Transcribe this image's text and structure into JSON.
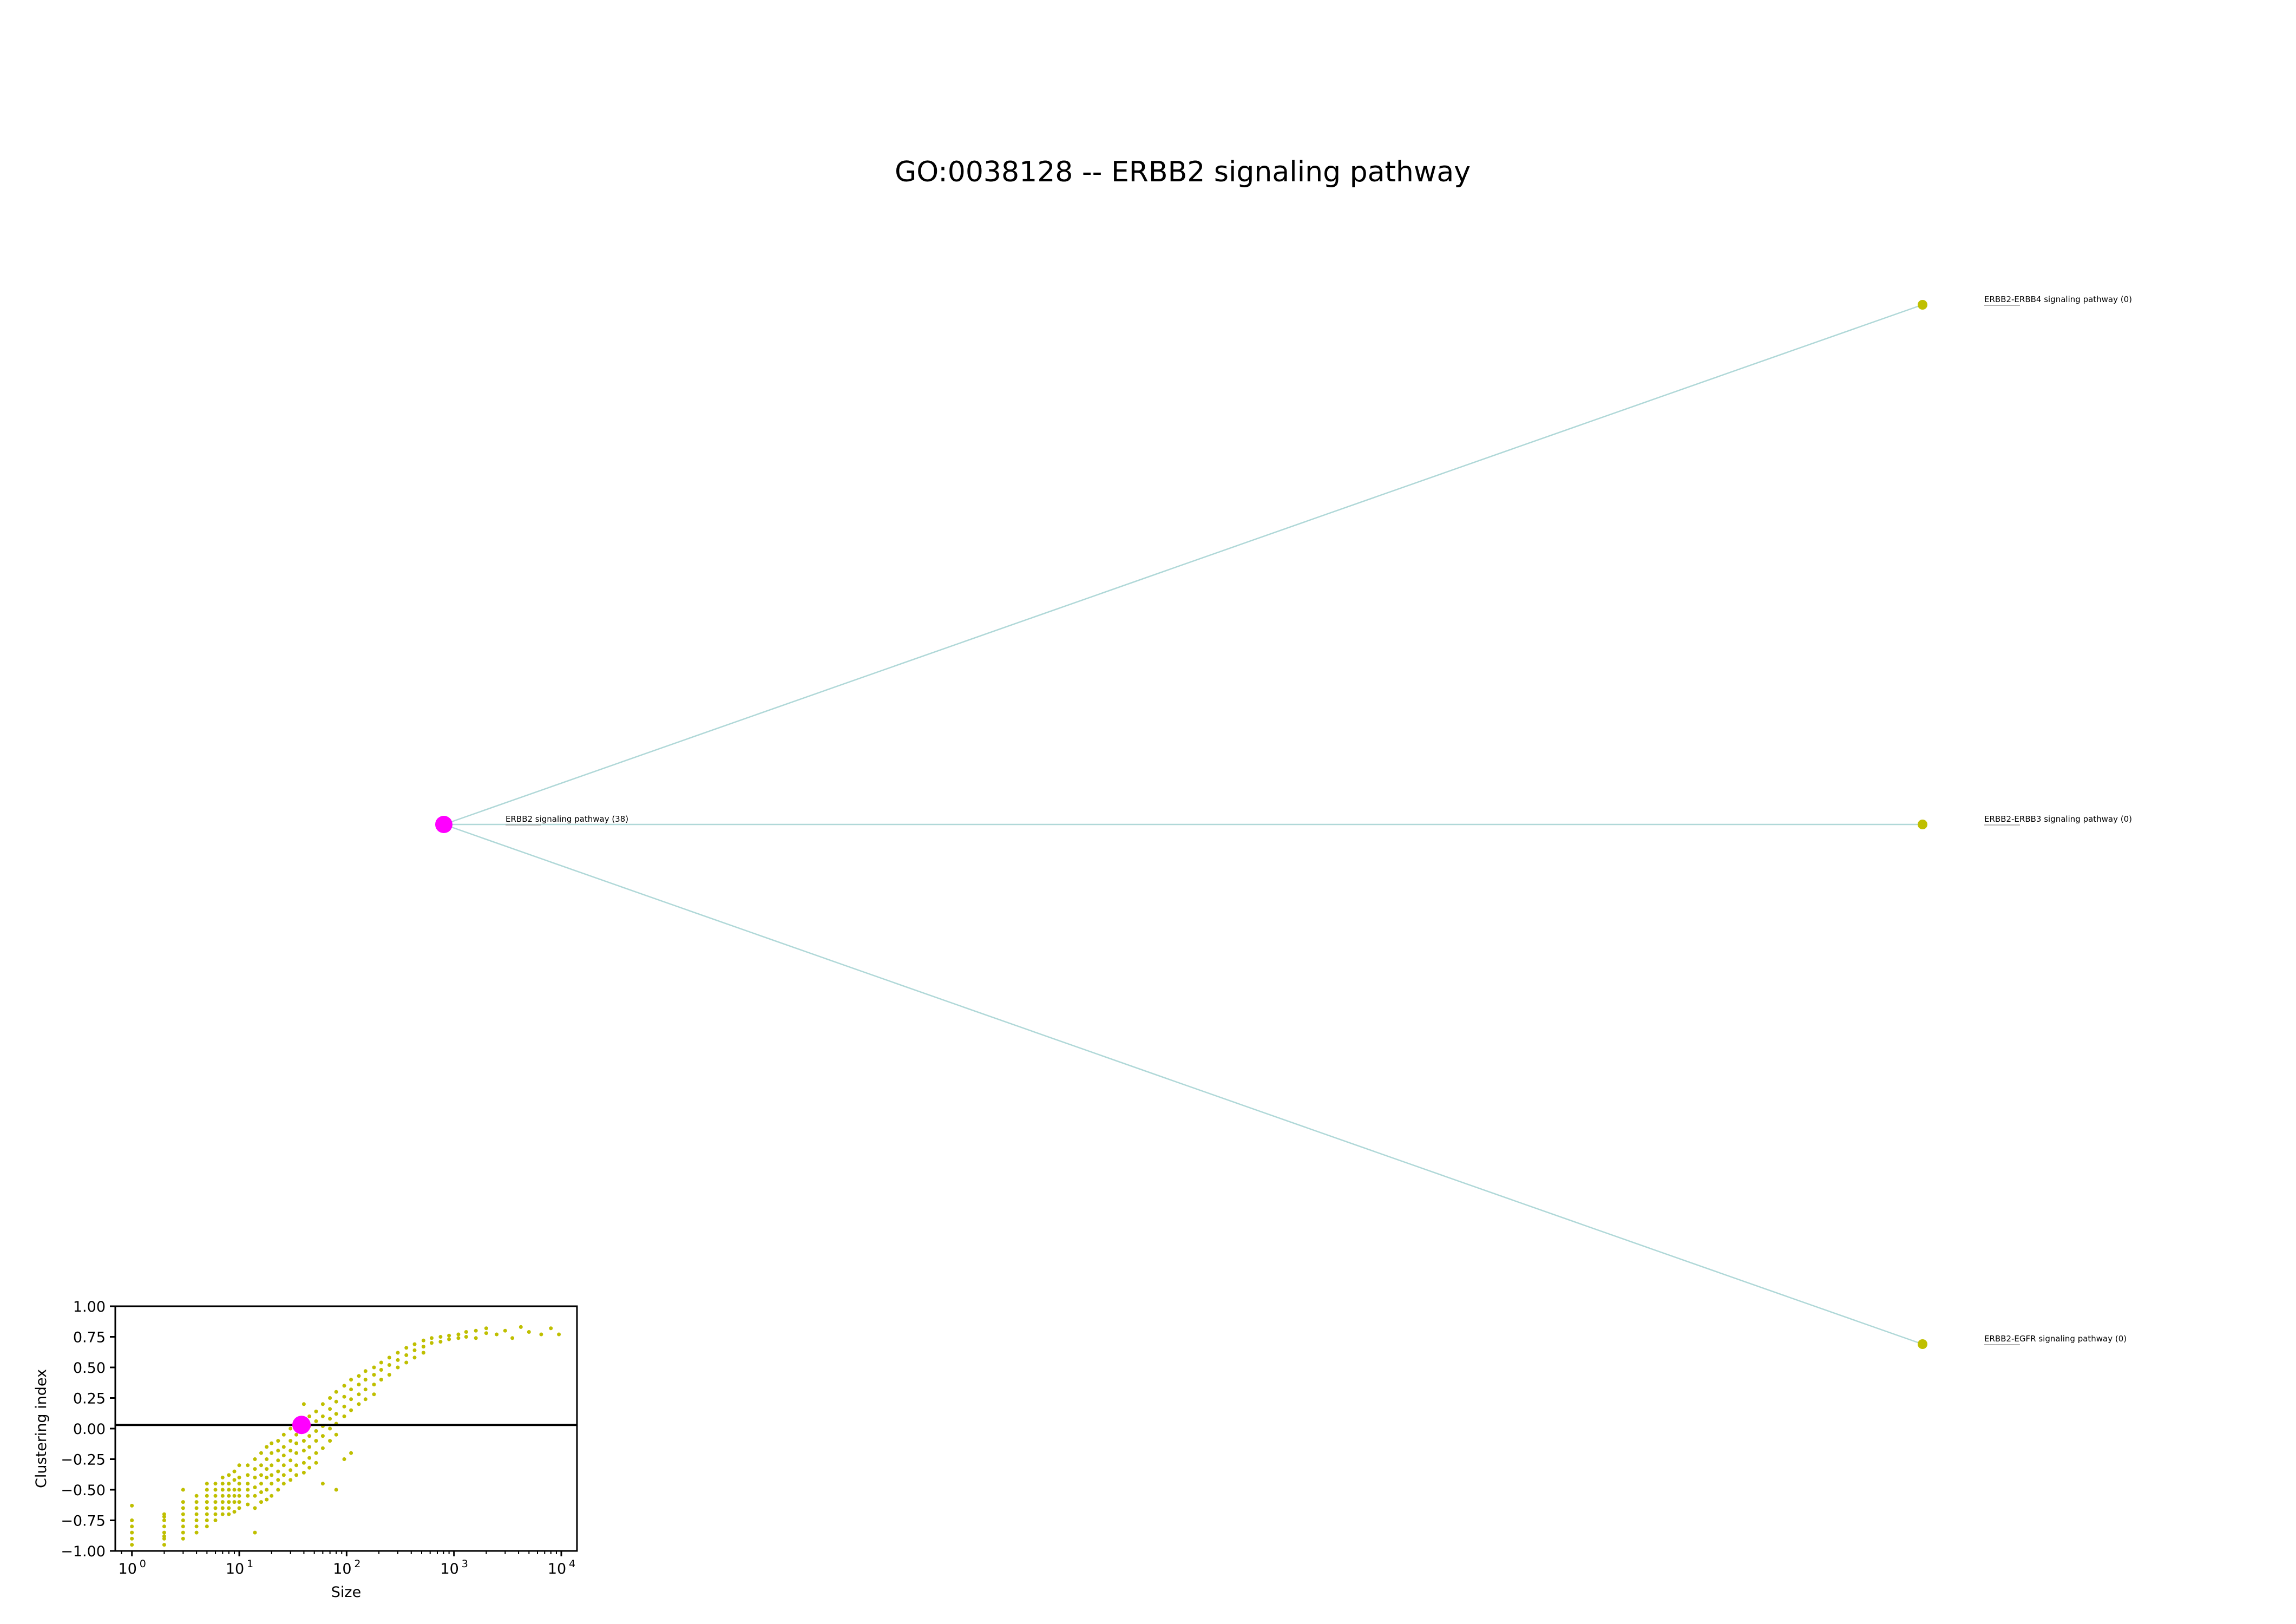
{
  "title": "GO:0038128 -- ERBB2 signaling pathway",
  "colors": {
    "root_node": "#ff00ff",
    "child_node": "#bfbf00",
    "edge": "#b0d8d8",
    "scatter": "#bfbf00",
    "highlight": "#ff00ff"
  },
  "graph": {
    "root": {
      "label": "ERBB2 signaling pathway (38)"
    },
    "children": [
      {
        "label": "ERBB2-ERBB4 signaling pathway (0)"
      },
      {
        "label": "ERBB2-ERBB3 signaling pathway (0)"
      },
      {
        "label": "ERBB2-EGFR signaling pathway (0)"
      }
    ]
  },
  "chart_data": {
    "type": "scatter",
    "xlabel": "Size",
    "ylabel": "Clustering index",
    "xscale": "log",
    "xlim": [
      0.7,
      14000
    ],
    "ylim": [
      -1.0,
      1.0
    ],
    "x_ticks": [
      "10",
      "10",
      "10",
      "10",
      "10"
    ],
    "x_tick_exponents": [
      "0",
      "1",
      "2",
      "3",
      "4"
    ],
    "y_ticks": [
      "1.00",
      "0.75",
      "0.50",
      "0.25",
      "0.00",
      "−0.25",
      "−0.50",
      "−0.75",
      "−1.00"
    ],
    "reference_line_y": 0.03,
    "highlight_point": {
      "x": 38,
      "y": 0.03
    },
    "points": [
      [
        1,
        -0.63
      ],
      [
        1,
        -0.75
      ],
      [
        1,
        -0.8
      ],
      [
        1,
        -0.85
      ],
      [
        1,
        -0.9
      ],
      [
        1,
        -0.95
      ],
      [
        2,
        -0.7
      ],
      [
        2,
        -0.75
      ],
      [
        2,
        -0.8
      ],
      [
        2,
        -0.85
      ],
      [
        2,
        -0.9
      ],
      [
        2,
        -0.95
      ],
      [
        2,
        -0.72
      ],
      [
        2,
        -0.88
      ],
      [
        3,
        -0.5
      ],
      [
        3,
        -0.6
      ],
      [
        3,
        -0.65
      ],
      [
        3,
        -0.7
      ],
      [
        3,
        -0.75
      ],
      [
        3,
        -0.8
      ],
      [
        3,
        -0.85
      ],
      [
        3,
        -0.9
      ],
      [
        4,
        -0.55
      ],
      [
        4,
        -0.6
      ],
      [
        4,
        -0.65
      ],
      [
        4,
        -0.7
      ],
      [
        4,
        -0.75
      ],
      [
        4,
        -0.8
      ],
      [
        4,
        -0.85
      ],
      [
        5,
        -0.45
      ],
      [
        5,
        -0.5
      ],
      [
        5,
        -0.55
      ],
      [
        5,
        -0.6
      ],
      [
        5,
        -0.65
      ],
      [
        5,
        -0.7
      ],
      [
        5,
        -0.75
      ],
      [
        5,
        -0.8
      ],
      [
        6,
        -0.45
      ],
      [
        6,
        -0.5
      ],
      [
        6,
        -0.55
      ],
      [
        6,
        -0.6
      ],
      [
        6,
        -0.65
      ],
      [
        6,
        -0.7
      ],
      [
        6,
        -0.75
      ],
      [
        7,
        -0.4
      ],
      [
        7,
        -0.45
      ],
      [
        7,
        -0.5
      ],
      [
        7,
        -0.55
      ],
      [
        7,
        -0.6
      ],
      [
        7,
        -0.65
      ],
      [
        7,
        -0.7
      ],
      [
        8,
        -0.38
      ],
      [
        8,
        -0.45
      ],
      [
        8,
        -0.5
      ],
      [
        8,
        -0.55
      ],
      [
        8,
        -0.6
      ],
      [
        8,
        -0.65
      ],
      [
        8,
        -0.7
      ],
      [
        9,
        -0.35
      ],
      [
        9,
        -0.42
      ],
      [
        9,
        -0.5
      ],
      [
        9,
        -0.55
      ],
      [
        9,
        -0.6
      ],
      [
        9,
        -0.68
      ],
      [
        10,
        -0.3
      ],
      [
        10,
        -0.4
      ],
      [
        10,
        -0.45
      ],
      [
        10,
        -0.5
      ],
      [
        10,
        -0.55
      ],
      [
        10,
        -0.6
      ],
      [
        10,
        -0.65
      ],
      [
        12,
        -0.3
      ],
      [
        12,
        -0.38
      ],
      [
        12,
        -0.45
      ],
      [
        12,
        -0.5
      ],
      [
        12,
        -0.55
      ],
      [
        12,
        -0.62
      ],
      [
        14,
        -0.25
      ],
      [
        14,
        -0.33
      ],
      [
        14,
        -0.4
      ],
      [
        14,
        -0.48
      ],
      [
        14,
        -0.55
      ],
      [
        14,
        -0.65
      ],
      [
        14,
        -0.85
      ],
      [
        16,
        -0.2
      ],
      [
        16,
        -0.3
      ],
      [
        16,
        -0.38
      ],
      [
        16,
        -0.45
      ],
      [
        16,
        -0.52
      ],
      [
        16,
        -0.6
      ],
      [
        18,
        -0.15
      ],
      [
        18,
        -0.25
      ],
      [
        18,
        -0.33
      ],
      [
        18,
        -0.4
      ],
      [
        18,
        -0.5
      ],
      [
        18,
        -0.58
      ],
      [
        20,
        -0.12
      ],
      [
        20,
        -0.2
      ],
      [
        20,
        -0.3
      ],
      [
        20,
        -0.38
      ],
      [
        20,
        -0.45
      ],
      [
        20,
        -0.55
      ],
      [
        23,
        -0.1
      ],
      [
        23,
        -0.18
      ],
      [
        23,
        -0.26
      ],
      [
        23,
        -0.35
      ],
      [
        23,
        -0.42
      ],
      [
        23,
        -0.5
      ],
      [
        26,
        -0.05
      ],
      [
        26,
        -0.15
      ],
      [
        26,
        -0.22
      ],
      [
        26,
        -0.3
      ],
      [
        26,
        -0.38
      ],
      [
        26,
        -0.45
      ],
      [
        30,
        0.0
      ],
      [
        30,
        -0.1
      ],
      [
        30,
        -0.18
      ],
      [
        30,
        -0.26
      ],
      [
        30,
        -0.34
      ],
      [
        30,
        -0.42
      ],
      [
        34,
        0.05
      ],
      [
        34,
        -0.05
      ],
      [
        34,
        -0.12
      ],
      [
        34,
        -0.2
      ],
      [
        34,
        -0.3
      ],
      [
        34,
        -0.38
      ],
      [
        40,
        0.2
      ],
      [
        40,
        0.08
      ],
      [
        40,
        -0.02
      ],
      [
        40,
        -0.1
      ],
      [
        40,
        -0.18
      ],
      [
        40,
        -0.28
      ],
      [
        40,
        -0.36
      ],
      [
        45,
        0.1
      ],
      [
        45,
        0.02
      ],
      [
        45,
        -0.06
      ],
      [
        45,
        -0.15
      ],
      [
        45,
        -0.24
      ],
      [
        45,
        -0.32
      ],
      [
        52,
        0.14
      ],
      [
        52,
        0.06
      ],
      [
        52,
        -0.02
      ],
      [
        52,
        -0.1
      ],
      [
        52,
        -0.2
      ],
      [
        52,
        -0.28
      ],
      [
        60,
        0.2
      ],
      [
        60,
        0.1
      ],
      [
        60,
        0.02
      ],
      [
        60,
        -0.06
      ],
      [
        60,
        -0.16
      ],
      [
        60,
        -0.45
      ],
      [
        70,
        0.25
      ],
      [
        70,
        0.16
      ],
      [
        70,
        0.08
      ],
      [
        70,
        0.0
      ],
      [
        70,
        -0.1
      ],
      [
        80,
        0.3
      ],
      [
        80,
        0.22
      ],
      [
        80,
        0.12
      ],
      [
        80,
        0.04
      ],
      [
        80,
        -0.05
      ],
      [
        80,
        -0.5
      ],
      [
        95,
        0.35
      ],
      [
        95,
        0.26
      ],
      [
        95,
        0.18
      ],
      [
        95,
        0.1
      ],
      [
        95,
        -0.25
      ],
      [
        110,
        0.4
      ],
      [
        110,
        0.32
      ],
      [
        110,
        0.24
      ],
      [
        110,
        0.15
      ],
      [
        110,
        -0.2
      ],
      [
        130,
        0.43
      ],
      [
        130,
        0.36
      ],
      [
        130,
        0.28
      ],
      [
        130,
        0.2
      ],
      [
        150,
        0.47
      ],
      [
        150,
        0.4
      ],
      [
        150,
        0.32
      ],
      [
        150,
        0.24
      ],
      [
        180,
        0.5
      ],
      [
        180,
        0.44
      ],
      [
        180,
        0.36
      ],
      [
        180,
        0.28
      ],
      [
        210,
        0.54
      ],
      [
        210,
        0.48
      ],
      [
        210,
        0.4
      ],
      [
        250,
        0.58
      ],
      [
        250,
        0.52
      ],
      [
        250,
        0.44
      ],
      [
        300,
        0.62
      ],
      [
        300,
        0.56
      ],
      [
        300,
        0.5
      ],
      [
        360,
        0.66
      ],
      [
        360,
        0.6
      ],
      [
        360,
        0.54
      ],
      [
        430,
        0.69
      ],
      [
        430,
        0.64
      ],
      [
        430,
        0.58
      ],
      [
        520,
        0.72
      ],
      [
        520,
        0.67
      ],
      [
        520,
        0.62
      ],
      [
        620,
        0.74
      ],
      [
        620,
        0.7
      ],
      [
        750,
        0.75
      ],
      [
        750,
        0.71
      ],
      [
        900,
        0.76
      ],
      [
        900,
        0.73
      ],
      [
        1100,
        0.77
      ],
      [
        1100,
        0.74
      ],
      [
        1300,
        0.79
      ],
      [
        1300,
        0.75
      ],
      [
        1600,
        0.8
      ],
      [
        1600,
        0.74
      ],
      [
        2000,
        0.78
      ],
      [
        2000,
        0.82
      ],
      [
        2500,
        0.77
      ],
      [
        3000,
        0.8
      ],
      [
        3500,
        0.74
      ],
      [
        4200,
        0.83
      ],
      [
        5000,
        0.79
      ],
      [
        6500,
        0.77
      ],
      [
        8000,
        0.82
      ],
      [
        9500,
        0.77
      ]
    ]
  }
}
